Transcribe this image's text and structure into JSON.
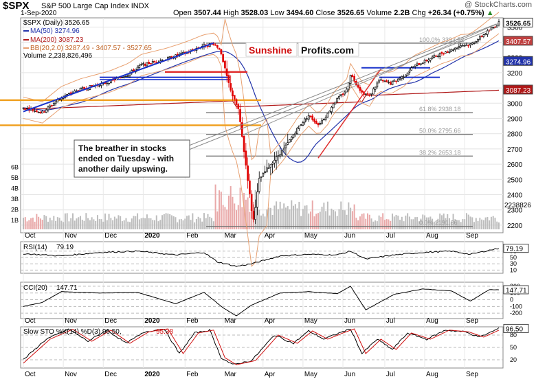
{
  "header": {
    "symbol": "$SPX",
    "name": "S&P 500 Large Cap Index",
    "exchange": "INDX",
    "date": "1-Sep-2020",
    "open_label": "Open",
    "open": "3507.44",
    "high_label": "High",
    "high": "3528.03",
    "low_label": "Low",
    "low": "3494.60",
    "close_label": "Close",
    "close": "3526.65",
    "volume_label": "Volume",
    "volume": "2.2B",
    "chg_label": "Chg",
    "chg": "+26.34 (+0.75%)",
    "watermark": "@ StockCharts.com"
  },
  "legend": {
    "price": "$SPX (Daily) 3526.65",
    "ma50": "MA(50) 3274.96",
    "ma200": "MA(200) 3087.23",
    "bb": "BB(20,2.0) 3287.49 - 3407.57 - 3527.65",
    "volume": "Volume 2,238,826,496"
  },
  "logo": {
    "part1": "Sunshine",
    "part2": "Profits.com"
  },
  "annotation": "The breather in stocks ended on Tuesday - with another daily upswing.",
  "colors": {
    "up": "#000000",
    "down": "#e00000",
    "ma50": "#2233aa",
    "ma200": "#b01818",
    "bb": "#e8a070",
    "trend_blue": "#1a33cc",
    "trend_red": "#e03030",
    "orange": "#f0a020",
    "indicator_fill": "#3b6e2f",
    "indicator_neg": "#7a3a30"
  },
  "chart_data": [
    {
      "type": "candlestick",
      "title": "$SPX Daily",
      "x_labels": [
        "Oct",
        "Nov",
        "Dec",
        "2020",
        "Feb",
        "Mar",
        "Apr",
        "May",
        "Jun",
        "Jul",
        "Aug",
        "Sep"
      ],
      "y_ticks": [
        2200,
        2300,
        2400,
        2500,
        2600,
        2700,
        2800,
        2900,
        3000,
        3100,
        3200,
        3300,
        3400,
        3500
      ],
      "ylim": [
        2150,
        3560
      ],
      "right_labels": [
        "3526.65",
        "3407.57",
        "3274.96",
        "3087.23"
      ],
      "volume_ticks": [
        "1B",
        "2B",
        "3B",
        "4B",
        "5B",
        "6B"
      ],
      "volume_last": "2238826",
      "fib_levels": [
        {
          "label": "100.0% 3393.52",
          "value": 3393.52
        },
        {
          "label": "61.8% 2938.18",
          "value": 2938.18
        },
        {
          "label": "50.0% 2795.66",
          "value": 2795.66
        },
        {
          "label": "38.2% 2653.18",
          "value": 2653.18
        },
        {
          "label": "0.0% 2191.86",
          "value": 2191.86
        }
      ],
      "path": [
        [
          0,
          2970
        ],
        [
          10,
          2940
        ],
        [
          20,
          3040
        ],
        [
          30,
          3090
        ],
        [
          45,
          3140
        ],
        [
          55,
          3190
        ],
        [
          62,
          3250
        ],
        [
          75,
          3290
        ],
        [
          85,
          3330
        ],
        [
          95,
          3380
        ],
        [
          100,
          3390
        ],
        [
          103,
          3360
        ],
        [
          108,
          3130
        ],
        [
          110,
          3050
        ],
        [
          113,
          2960
        ],
        [
          115,
          2780
        ],
        [
          118,
          2500
        ],
        [
          120,
          2300
        ],
        [
          121,
          2237
        ],
        [
          124,
          2500
        ],
        [
          130,
          2600
        ],
        [
          137,
          2700
        ],
        [
          145,
          2850
        ],
        [
          150,
          2920
        ],
        [
          155,
          2860
        ],
        [
          160,
          2930
        ],
        [
          163,
          3000
        ],
        [
          167,
          3050
        ],
        [
          170,
          3090
        ],
        [
          172,
          3190
        ],
        [
          175,
          3130
        ],
        [
          178,
          3070
        ],
        [
          182,
          3050
        ],
        [
          187,
          3150
        ],
        [
          193,
          3130
        ],
        [
          200,
          3180
        ],
        [
          205,
          3240
        ],
        [
          210,
          3270
        ],
        [
          215,
          3300
        ],
        [
          220,
          3330
        ],
        [
          225,
          3350
        ],
        [
          230,
          3380
        ],
        [
          235,
          3385
        ],
        [
          240,
          3430
        ],
        [
          245,
          3480
        ],
        [
          248,
          3508
        ],
        [
          250,
          3527
        ]
      ]
    },
    {
      "type": "line",
      "title": "RSI(14)",
      "last": "79.19",
      "y_ticks": [
        70,
        50,
        30,
        10
      ],
      "path": [
        [
          0,
          62
        ],
        [
          20,
          55
        ],
        [
          40,
          66
        ],
        [
          60,
          70
        ],
        [
          80,
          58
        ],
        [
          95,
          66
        ],
        [
          102,
          36
        ],
        [
          112,
          22
        ],
        [
          120,
          30
        ],
        [
          135,
          55
        ],
        [
          150,
          60
        ],
        [
          165,
          58
        ],
        [
          172,
          70
        ],
        [
          180,
          45
        ],
        [
          195,
          58
        ],
        [
          210,
          66
        ],
        [
          225,
          70
        ],
        [
          235,
          60
        ],
        [
          245,
          73
        ],
        [
          250,
          79
        ]
      ]
    },
    {
      "type": "line",
      "title": "CCI(20)",
      "last": "147.71",
      "y_ticks": [
        200,
        100,
        0,
        -100,
        -200
      ],
      "path": [
        [
          0,
          -100
        ],
        [
          10,
          -40
        ],
        [
          20,
          120
        ],
        [
          40,
          100
        ],
        [
          60,
          110
        ],
        [
          80,
          -60
        ],
        [
          95,
          110
        ],
        [
          105,
          -120
        ],
        [
          112,
          -240
        ],
        [
          120,
          -80
        ],
        [
          135,
          100
        ],
        [
          150,
          120
        ],
        [
          165,
          90
        ],
        [
          172,
          200
        ],
        [
          180,
          -150
        ],
        [
          195,
          80
        ],
        [
          210,
          160
        ],
        [
          225,
          130
        ],
        [
          235,
          -20
        ],
        [
          245,
          150
        ],
        [
          250,
          148
        ]
      ]
    },
    {
      "type": "line",
      "title": "Slow STO %K(14) %D(3)",
      "k_label": "Slow STO %K(14) %D(3) 96.50,",
      "d_value": "95.38",
      "last": "96.50",
      "y_ticks": [
        80,
        50,
        20
      ],
      "path": [
        [
          0,
          20
        ],
        [
          12,
          70
        ],
        [
          24,
          94
        ],
        [
          34,
          65
        ],
        [
          44,
          92
        ],
        [
          54,
          60
        ],
        [
          64,
          88
        ],
        [
          74,
          95
        ],
        [
          82,
          35
        ],
        [
          90,
          85
        ],
        [
          98,
          92
        ],
        [
          104,
          25
        ],
        [
          110,
          8
        ],
        [
          120,
          18
        ],
        [
          132,
          80
        ],
        [
          142,
          60
        ],
        [
          150,
          90
        ],
        [
          158,
          70
        ],
        [
          166,
          85
        ],
        [
          172,
          95
        ],
        [
          178,
          35
        ],
        [
          186,
          70
        ],
        [
          194,
          45
        ],
        [
          202,
          85
        ],
        [
          212,
          70
        ],
        [
          222,
          92
        ],
        [
          232,
          88
        ],
        [
          240,
          75
        ],
        [
          250,
          96
        ]
      ]
    }
  ]
}
